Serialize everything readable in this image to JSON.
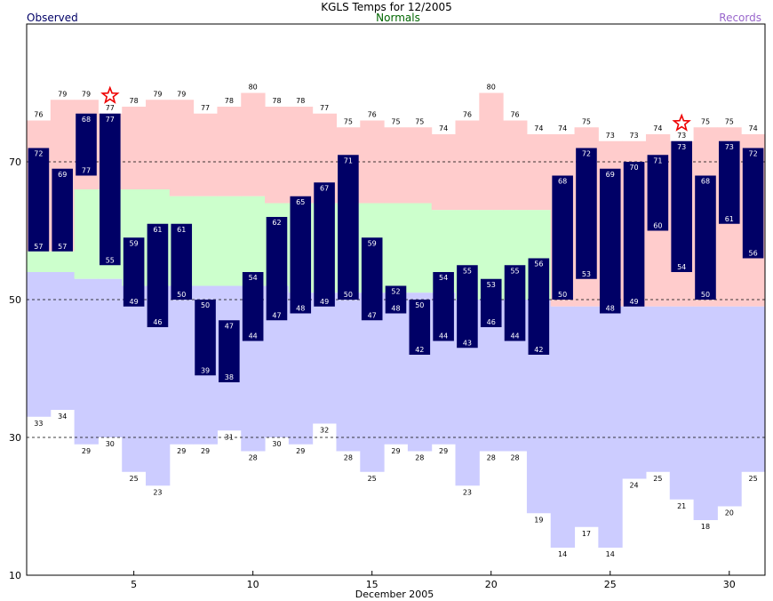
{
  "chart_data": {
    "type": "bar",
    "title": "KGLS Temps for 12/2005",
    "legend": {
      "observed": "Observed",
      "normals": "Normals",
      "records": "Records"
    },
    "xlabel": "December 2005",
    "ylabel": "",
    "xlim": [
      0.5,
      31.5
    ],
    "ylim": [
      10,
      90
    ],
    "x_ticks": [
      5,
      10,
      15,
      20,
      25,
      30
    ],
    "y_ticks": [
      10,
      30,
      50,
      70
    ],
    "gridlines_y": [
      30,
      50,
      70
    ],
    "days": [
      1,
      2,
      3,
      4,
      5,
      6,
      7,
      8,
      9,
      10,
      11,
      12,
      13,
      14,
      15,
      16,
      17,
      18,
      19,
      20,
      21,
      22,
      23,
      24,
      25,
      26,
      27,
      28,
      29,
      30,
      31
    ],
    "series": [
      {
        "name": "Observed",
        "key": "obs_high",
        "values": [
          72,
          69,
          68,
          77,
          59,
          61,
          61,
          50,
          47,
          54,
          62,
          65,
          67,
          71,
          59,
          52,
          50,
          54,
          55,
          53,
          55,
          56,
          68,
          72,
          69,
          70,
          71,
          73,
          68,
          73,
          72
        ]
      },
      {
        "name": "Observed",
        "key": "obs_low",
        "values": [
          57,
          57,
          77,
          55,
          49,
          46,
          50,
          39,
          38,
          44,
          47,
          48,
          49,
          50,
          47,
          48,
          42,
          44,
          43,
          46,
          44,
          42,
          50,
          53,
          48,
          49,
          60,
          54,
          50,
          61,
          56
        ]
      },
      {
        "name": "Normals",
        "key": "normal_high",
        "values": [
          57,
          57,
          66,
          66,
          66,
          66,
          65,
          65,
          65,
          65,
          64,
          64,
          64,
          64,
          64,
          64,
          64,
          63,
          63,
          63,
          63,
          63,
          49,
          49,
          49,
          49,
          49,
          49,
          49,
          49,
          49
        ]
      },
      {
        "name": "Normals",
        "key": "normal_low",
        "values": [
          54,
          54,
          53,
          53,
          52,
          52,
          52,
          52,
          52,
          52,
          52,
          51,
          51,
          51,
          51,
          51,
          51,
          51,
          50,
          50,
          50,
          50,
          49,
          49,
          49,
          49,
          49,
          49,
          49,
          49,
          49
        ]
      },
      {
        "name": "Records",
        "key": "record_high",
        "values": [
          76,
          79,
          79,
          77,
          78,
          79,
          79,
          77,
          78,
          80,
          78,
          78,
          77,
          75,
          76,
          75,
          75,
          74,
          76,
          80,
          76,
          74,
          74,
          75,
          73,
          73,
          74,
          73,
          75,
          75,
          74
        ]
      },
      {
        "name": "Records",
        "key": "record_low",
        "values": [
          33,
          34,
          29,
          30,
          25,
          23,
          29,
          29,
          31,
          28,
          30,
          29,
          32,
          28,
          25,
          29,
          28,
          29,
          23,
          28,
          28,
          19,
          14,
          17,
          14,
          24,
          25,
          21,
          18,
          20,
          25
        ]
      }
    ],
    "record_markers": [
      4,
      28
    ],
    "colors": {
      "observed": "#000066",
      "observed_label": "#000066",
      "normals_label": "#006600",
      "records_label": "#9966cc",
      "record_high_fill": "#ffcccc",
      "normal_fill": "#ccffcc",
      "record_low_fill": "#ccccff",
      "star": "#ee0000",
      "bar_text": "#ffffff"
    }
  }
}
